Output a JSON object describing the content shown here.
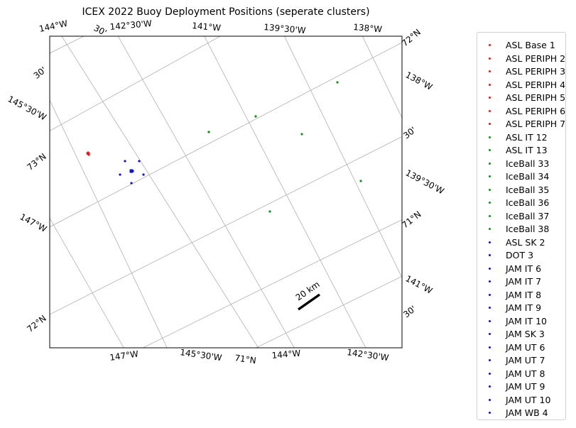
{
  "title": "ICEX 2022 Buoy Deployment Positions (seperate clusters)",
  "colors": {
    "red": "#e8191a",
    "green": "#1a8f1a",
    "blue": "#1010e0",
    "grid": "#b0b0b0"
  },
  "top_labels": [
    "144°W",
    "30'",
    "142°30'W",
    "141°W",
    "139°30'W",
    "138°W"
  ],
  "right_labels": [
    "72°N",
    "138°W",
    "30'",
    "139°30'W",
    "71°N",
    "141°W",
    "30'"
  ],
  "left_labels": [
    "30'",
    "145°30'W",
    "73°N",
    "147°W",
    "72°N"
  ],
  "bottom_labels": [
    "147°W",
    "145°30'W",
    "71°N",
    "144°W",
    "142°30'W"
  ],
  "scale_bar_label": "20 km",
  "legend": {
    "items": [
      {
        "label": "ASL Base 1",
        "color": "red"
      },
      {
        "label": "ASL PERIPH 2",
        "color": "red"
      },
      {
        "label": "ASL PERIPH 3",
        "color": "red"
      },
      {
        "label": "ASL PERIPH 4",
        "color": "red"
      },
      {
        "label": "ASL PERIPH 5",
        "color": "red"
      },
      {
        "label": "ASL PERIPH 6",
        "color": "red"
      },
      {
        "label": "ASL PERIPH 7",
        "color": "red"
      },
      {
        "label": "ASL IT 12",
        "color": "green"
      },
      {
        "label": "ASL IT 13",
        "color": "green"
      },
      {
        "label": "IceBall 33",
        "color": "green"
      },
      {
        "label": "IceBall 34",
        "color": "green"
      },
      {
        "label": "IceBall 35",
        "color": "green"
      },
      {
        "label": "IceBall 36",
        "color": "green"
      },
      {
        "label": "IceBall 37",
        "color": "green"
      },
      {
        "label": "IceBall 38",
        "color": "green"
      },
      {
        "label": "ASL SK 2",
        "color": "blue"
      },
      {
        "label": "DOT 3",
        "color": "blue"
      },
      {
        "label": "JAM IT 6",
        "color": "blue"
      },
      {
        "label": "JAM IT 7",
        "color": "blue"
      },
      {
        "label": "JAM IT 8",
        "color": "blue"
      },
      {
        "label": "JAM IT 9",
        "color": "blue"
      },
      {
        "label": "JAM IT 10",
        "color": "blue"
      },
      {
        "label": "JAM SK 3",
        "color": "blue"
      },
      {
        "label": "JAM UT 6",
        "color": "blue"
      },
      {
        "label": "JAM UT 7",
        "color": "blue"
      },
      {
        "label": "JAM UT 8",
        "color": "blue"
      },
      {
        "label": "JAM UT 9",
        "color": "blue"
      },
      {
        "label": "JAM UT 10",
        "color": "blue"
      },
      {
        "label": "JAM WB 4",
        "color": "blue"
      }
    ]
  }
}
